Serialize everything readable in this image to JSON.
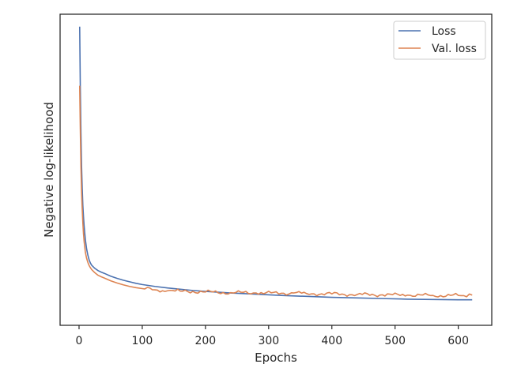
{
  "chart_data": {
    "type": "line",
    "title": "",
    "xlabel": "Epochs",
    "ylabel": "Negative log-likelihood",
    "xlim": [
      -30,
      653
    ],
    "ylim": [
      0,
      100
    ],
    "y_tick_labels_shown": false,
    "x_ticks": [
      0,
      100,
      200,
      300,
      400,
      500,
      600
    ],
    "x_tick_labels": [
      "0",
      "100",
      "200",
      "300",
      "400",
      "500",
      "600"
    ],
    "grid": false,
    "legend_position": "top-right",
    "series": [
      {
        "name": "Loss",
        "color": "#4c72b0",
        "x": [
          1,
          2,
          3,
          4,
          5,
          6,
          7,
          8,
          10,
          12,
          14,
          16,
          18,
          20,
          25,
          30,
          35,
          40,
          50,
          60,
          70,
          80,
          90,
          100,
          120,
          140,
          160,
          180,
          200,
          240,
          280,
          320,
          360,
          400,
          440,
          480,
          520,
          560,
          600,
          622
        ],
        "y": [
          96,
          76,
          62,
          51,
          44,
          38.5,
          35,
          32,
          27.5,
          24.5,
          22.5,
          21,
          20,
          19.3,
          18.3,
          17.6,
          17.1,
          16.7,
          15.8,
          15.1,
          14.5,
          14.0,
          13.5,
          13.1,
          12.5,
          12.0,
          11.6,
          11.2,
          10.9,
          10.4,
          10.0,
          9.6,
          9.3,
          9.0,
          8.8,
          8.6,
          8.4,
          8.3,
          8.2,
          8.2
        ]
      },
      {
        "name": "Val. loss",
        "color": "#dd8452",
        "x": [
          1,
          2,
          3,
          4,
          5,
          6,
          7,
          8,
          10,
          12,
          14,
          16,
          18,
          20,
          25,
          30,
          35,
          40,
          50,
          60,
          70,
          80,
          90,
          100,
          120,
          140,
          160,
          180,
          200,
          240,
          280,
          320,
          340,
          360,
          400,
          440,
          480,
          520,
          560,
          600,
          622
        ],
        "y": [
          77,
          63,
          51,
          43,
          37.5,
          33,
          29.5,
          27,
          23.5,
          21.5,
          20.2,
          19.2,
          18.5,
          17.9,
          16.9,
          16.1,
          15.6,
          15.2,
          14.3,
          13.6,
          13.0,
          12.5,
          12.1,
          11.8,
          11.4,
          11.1,
          11.0,
          10.9,
          10.7,
          10.5,
          10.4,
          10.3,
          10.4,
          10.2,
          10.1,
          9.9,
          9.8,
          9.7,
          9.6,
          9.6,
          9.7
        ]
      }
    ]
  }
}
